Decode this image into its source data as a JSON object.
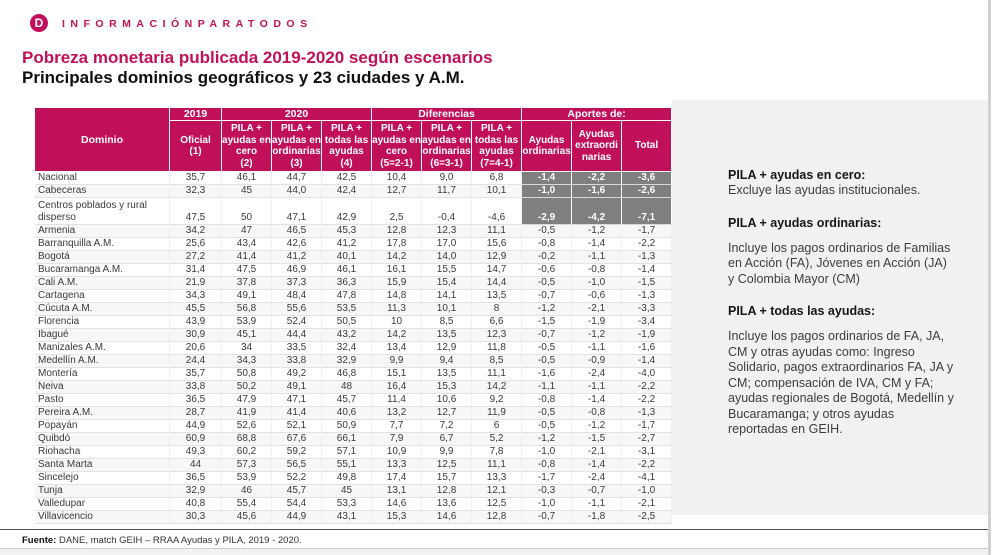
{
  "brand": {
    "logo_letter": "D",
    "wordmark": "INFORMACIÓNPARATODOS"
  },
  "header": {
    "title": "Pobreza monetaria publicada 2019-2020 según escenarios",
    "subtitle": "Principales dominios geográficos y 23 ciudades y A.M."
  },
  "table": {
    "group_headers": {
      "domain": "Dominio",
      "y2019": "2019",
      "y2020": "2020",
      "diferencias": "Diferencias",
      "aportes": "Aportes de:"
    },
    "columns": [
      {
        "lines": [
          "Oficial",
          "(1)"
        ]
      },
      {
        "lines": [
          "PILA +",
          "ayudas en",
          "cero",
          "(2)"
        ]
      },
      {
        "lines": [
          "PILA +",
          "ayudas en",
          "ordinarias",
          "(3)"
        ]
      },
      {
        "lines": [
          "PILA +",
          "todas las",
          "ayudas",
          "(4)"
        ]
      },
      {
        "lines": [
          "PILA +",
          "ayudas en",
          "cero",
          "(5=2-1)"
        ]
      },
      {
        "lines": [
          "PILA +",
          "ayudas en",
          "ordinarias",
          "(6=3-1)"
        ]
      },
      {
        "lines": [
          "PILA +",
          "todas las",
          "ayudas",
          "(7=4-1)"
        ]
      },
      {
        "lines": [
          "Ayudas",
          "ordinarias"
        ]
      },
      {
        "lines": [
          "Ayudas",
          "extraordi",
          "narias"
        ]
      },
      {
        "lines": [
          "Total"
        ]
      }
    ],
    "rows": [
      {
        "domain": "Nacional",
        "values": [
          "35,7",
          "46,1",
          "44,7",
          "42,5",
          "10,4",
          "9,0",
          "6,8",
          "-1,4",
          "-2,2",
          "-3,6"
        ],
        "gray_aportes": true
      },
      {
        "domain": "Cabeceras",
        "values": [
          "32,3",
          "45",
          "44,0",
          "42,4",
          "12,7",
          "11,7",
          "10,1",
          "-1,0",
          "-1,6",
          "-2,6"
        ],
        "gray_aportes": true
      },
      {
        "domain": "Centros poblados y rural disperso",
        "values": [
          "47,5",
          "50",
          "47,1",
          "42,9",
          "2,5",
          "-0,4",
          "-4,6",
          "-2,9",
          "-4,2",
          "-7,1"
        ],
        "gray_aportes": true,
        "two_line": true
      },
      {
        "domain": "Armenia",
        "values": [
          "34,2",
          "47",
          "46,5",
          "45,3",
          "12,8",
          "12,3",
          "11,1",
          "-0,5",
          "-1,2",
          "-1,7"
        ]
      },
      {
        "domain": "Barranquilla A.M.",
        "values": [
          "25,6",
          "43,4",
          "42,6",
          "41,2",
          "17,8",
          "17,0",
          "15,6",
          "-0,8",
          "-1,4",
          "-2,2"
        ]
      },
      {
        "domain": "Bogotá",
        "values": [
          "27,2",
          "41,4",
          "41,2",
          "40,1",
          "14,2",
          "14,0",
          "12,9",
          "-0,2",
          "-1,1",
          "-1,3"
        ]
      },
      {
        "domain": "Bucaramanga A.M.",
        "values": [
          "31,4",
          "47,5",
          "46,9",
          "46,1",
          "16,1",
          "15,5",
          "14,7",
          "-0,6",
          "-0,8",
          "-1,4"
        ]
      },
      {
        "domain": "Cali A.M.",
        "values": [
          "21,9",
          "37,8",
          "37,3",
          "36,3",
          "15,9",
          "15,4",
          "14,4",
          "-0,5",
          "-1,0",
          "-1,5"
        ]
      },
      {
        "domain": "Cartagena",
        "values": [
          "34,3",
          "49,1",
          "48,4",
          "47,8",
          "14,8",
          "14,1",
          "13,5",
          "-0,7",
          "-0,6",
          "-1,3"
        ]
      },
      {
        "domain": "Cúcuta A.M.",
        "values": [
          "45,5",
          "56,8",
          "55,6",
          "53,5",
          "11,3",
          "10,1",
          "8",
          "-1,2",
          "-2,1",
          "-3,3"
        ]
      },
      {
        "domain": "Florencia",
        "values": [
          "43,9",
          "53,9",
          "52,4",
          "50,5",
          "10",
          "8,5",
          "6,6",
          "-1,5",
          "-1,9",
          "-3,4"
        ]
      },
      {
        "domain": "Ibagué",
        "values": [
          "30,9",
          "45,1",
          "44,4",
          "43,2",
          "14,2",
          "13,5",
          "12,3",
          "-0,7",
          "-1,2",
          "-1,9"
        ]
      },
      {
        "domain": "Manizales A.M.",
        "values": [
          "20,6",
          "34",
          "33,5",
          "32,4",
          "13,4",
          "12,9",
          "11,8",
          "-0,5",
          "-1,1",
          "-1,6"
        ]
      },
      {
        "domain": "Medellín A.M.",
        "values": [
          "24,4",
          "34,3",
          "33,8",
          "32,9",
          "9,9",
          "9,4",
          "8,5",
          "-0,5",
          "-0,9",
          "-1,4"
        ]
      },
      {
        "domain": "Montería",
        "values": [
          "35,7",
          "50,8",
          "49,2",
          "46,8",
          "15,1",
          "13,5",
          "11,1",
          "-1,6",
          "-2,4",
          "-4,0"
        ]
      },
      {
        "domain": "Neiva",
        "values": [
          "33,8",
          "50,2",
          "49,1",
          "48",
          "16,4",
          "15,3",
          "14,2",
          "-1,1",
          "-1,1",
          "-2,2"
        ]
      },
      {
        "domain": "Pasto",
        "values": [
          "36,5",
          "47,9",
          "47,1",
          "45,7",
          "11,4",
          "10,6",
          "9,2",
          "-0,8",
          "-1,4",
          "-2,2"
        ]
      },
      {
        "domain": "Pereira A.M.",
        "values": [
          "28,7",
          "41,9",
          "41,4",
          "40,6",
          "13,2",
          "12,7",
          "11,9",
          "-0,5",
          "-0,8",
          "-1,3"
        ]
      },
      {
        "domain": "Popayán",
        "values": [
          "44,9",
          "52,6",
          "52,1",
          "50,9",
          "7,7",
          "7,2",
          "6",
          "-0,5",
          "-1,2",
          "-1,7"
        ]
      },
      {
        "domain": "Quibdó",
        "values": [
          "60,9",
          "68,8",
          "67,6",
          "66,1",
          "7,9",
          "6,7",
          "5,2",
          "-1,2",
          "-1,5",
          "-2,7"
        ]
      },
      {
        "domain": "Riohacha",
        "values": [
          "49,3",
          "60,2",
          "59,2",
          "57,1",
          "10,9",
          "9,9",
          "7,8",
          "-1,0",
          "-2,1",
          "-3,1"
        ]
      },
      {
        "domain": "Santa Marta",
        "values": [
          "44",
          "57,3",
          "56,5",
          "55,1",
          "13,3",
          "12,5",
          "11,1",
          "-0,8",
          "-1,4",
          "-2,2"
        ]
      },
      {
        "domain": "Sincelejo",
        "values": [
          "36,5",
          "53,9",
          "52,2",
          "49,8",
          "17,4",
          "15,7",
          "13,3",
          "-1,7",
          "-2,4",
          "-4,1"
        ]
      },
      {
        "domain": "Tunja",
        "values": [
          "32,9",
          "46",
          "45,7",
          "45",
          "13,1",
          "12,8",
          "12,1",
          "-0,3",
          "-0,7",
          "-1,0"
        ]
      },
      {
        "domain": "Valledupar",
        "values": [
          "40,8",
          "55,4",
          "54,4",
          "53,3",
          "14,6",
          "13,6",
          "12,5",
          "-1,0",
          "-1,1",
          "-2,1"
        ]
      },
      {
        "domain": "Villavicencio",
        "values": [
          "30,3",
          "45,6",
          "44,9",
          "43,1",
          "15,3",
          "14,6",
          "12,8",
          "-0,7",
          "-1,8",
          "-2,5"
        ]
      }
    ]
  },
  "notes": [
    {
      "heading": "PILA + ayudas en cero:",
      "body": "Excluye las ayudas institucionales."
    },
    {
      "heading": "PILA + ayudas ordinarias:",
      "body": "Incluye los pagos ordinarios de Familias en Acción (FA), Jóvenes en Acción (JA) y Colombia Mayor (CM)"
    },
    {
      "heading": "PILA + todas las ayudas:",
      "body": "Incluye los pagos ordinarios de FA, JA, CM y otras ayudas como: Ingreso Solidario, pagos extraordinarios FA, JA y CM; compensación de IVA, CM y FA; ayudas regionales de Bogotá, Medellín y Bucaramanga; y otros ayudas reportadas en GEIH."
    }
  ],
  "footer": {
    "label": "Fuente:",
    "text": " DANE, match GEIH – RRAA Ayudas y PILA, 2019 - 2020."
  },
  "colors": {
    "brand_magenta": "#c1105a",
    "highlight_gray": "#7f7f7f",
    "panel_gray": "#f1f1f1"
  }
}
